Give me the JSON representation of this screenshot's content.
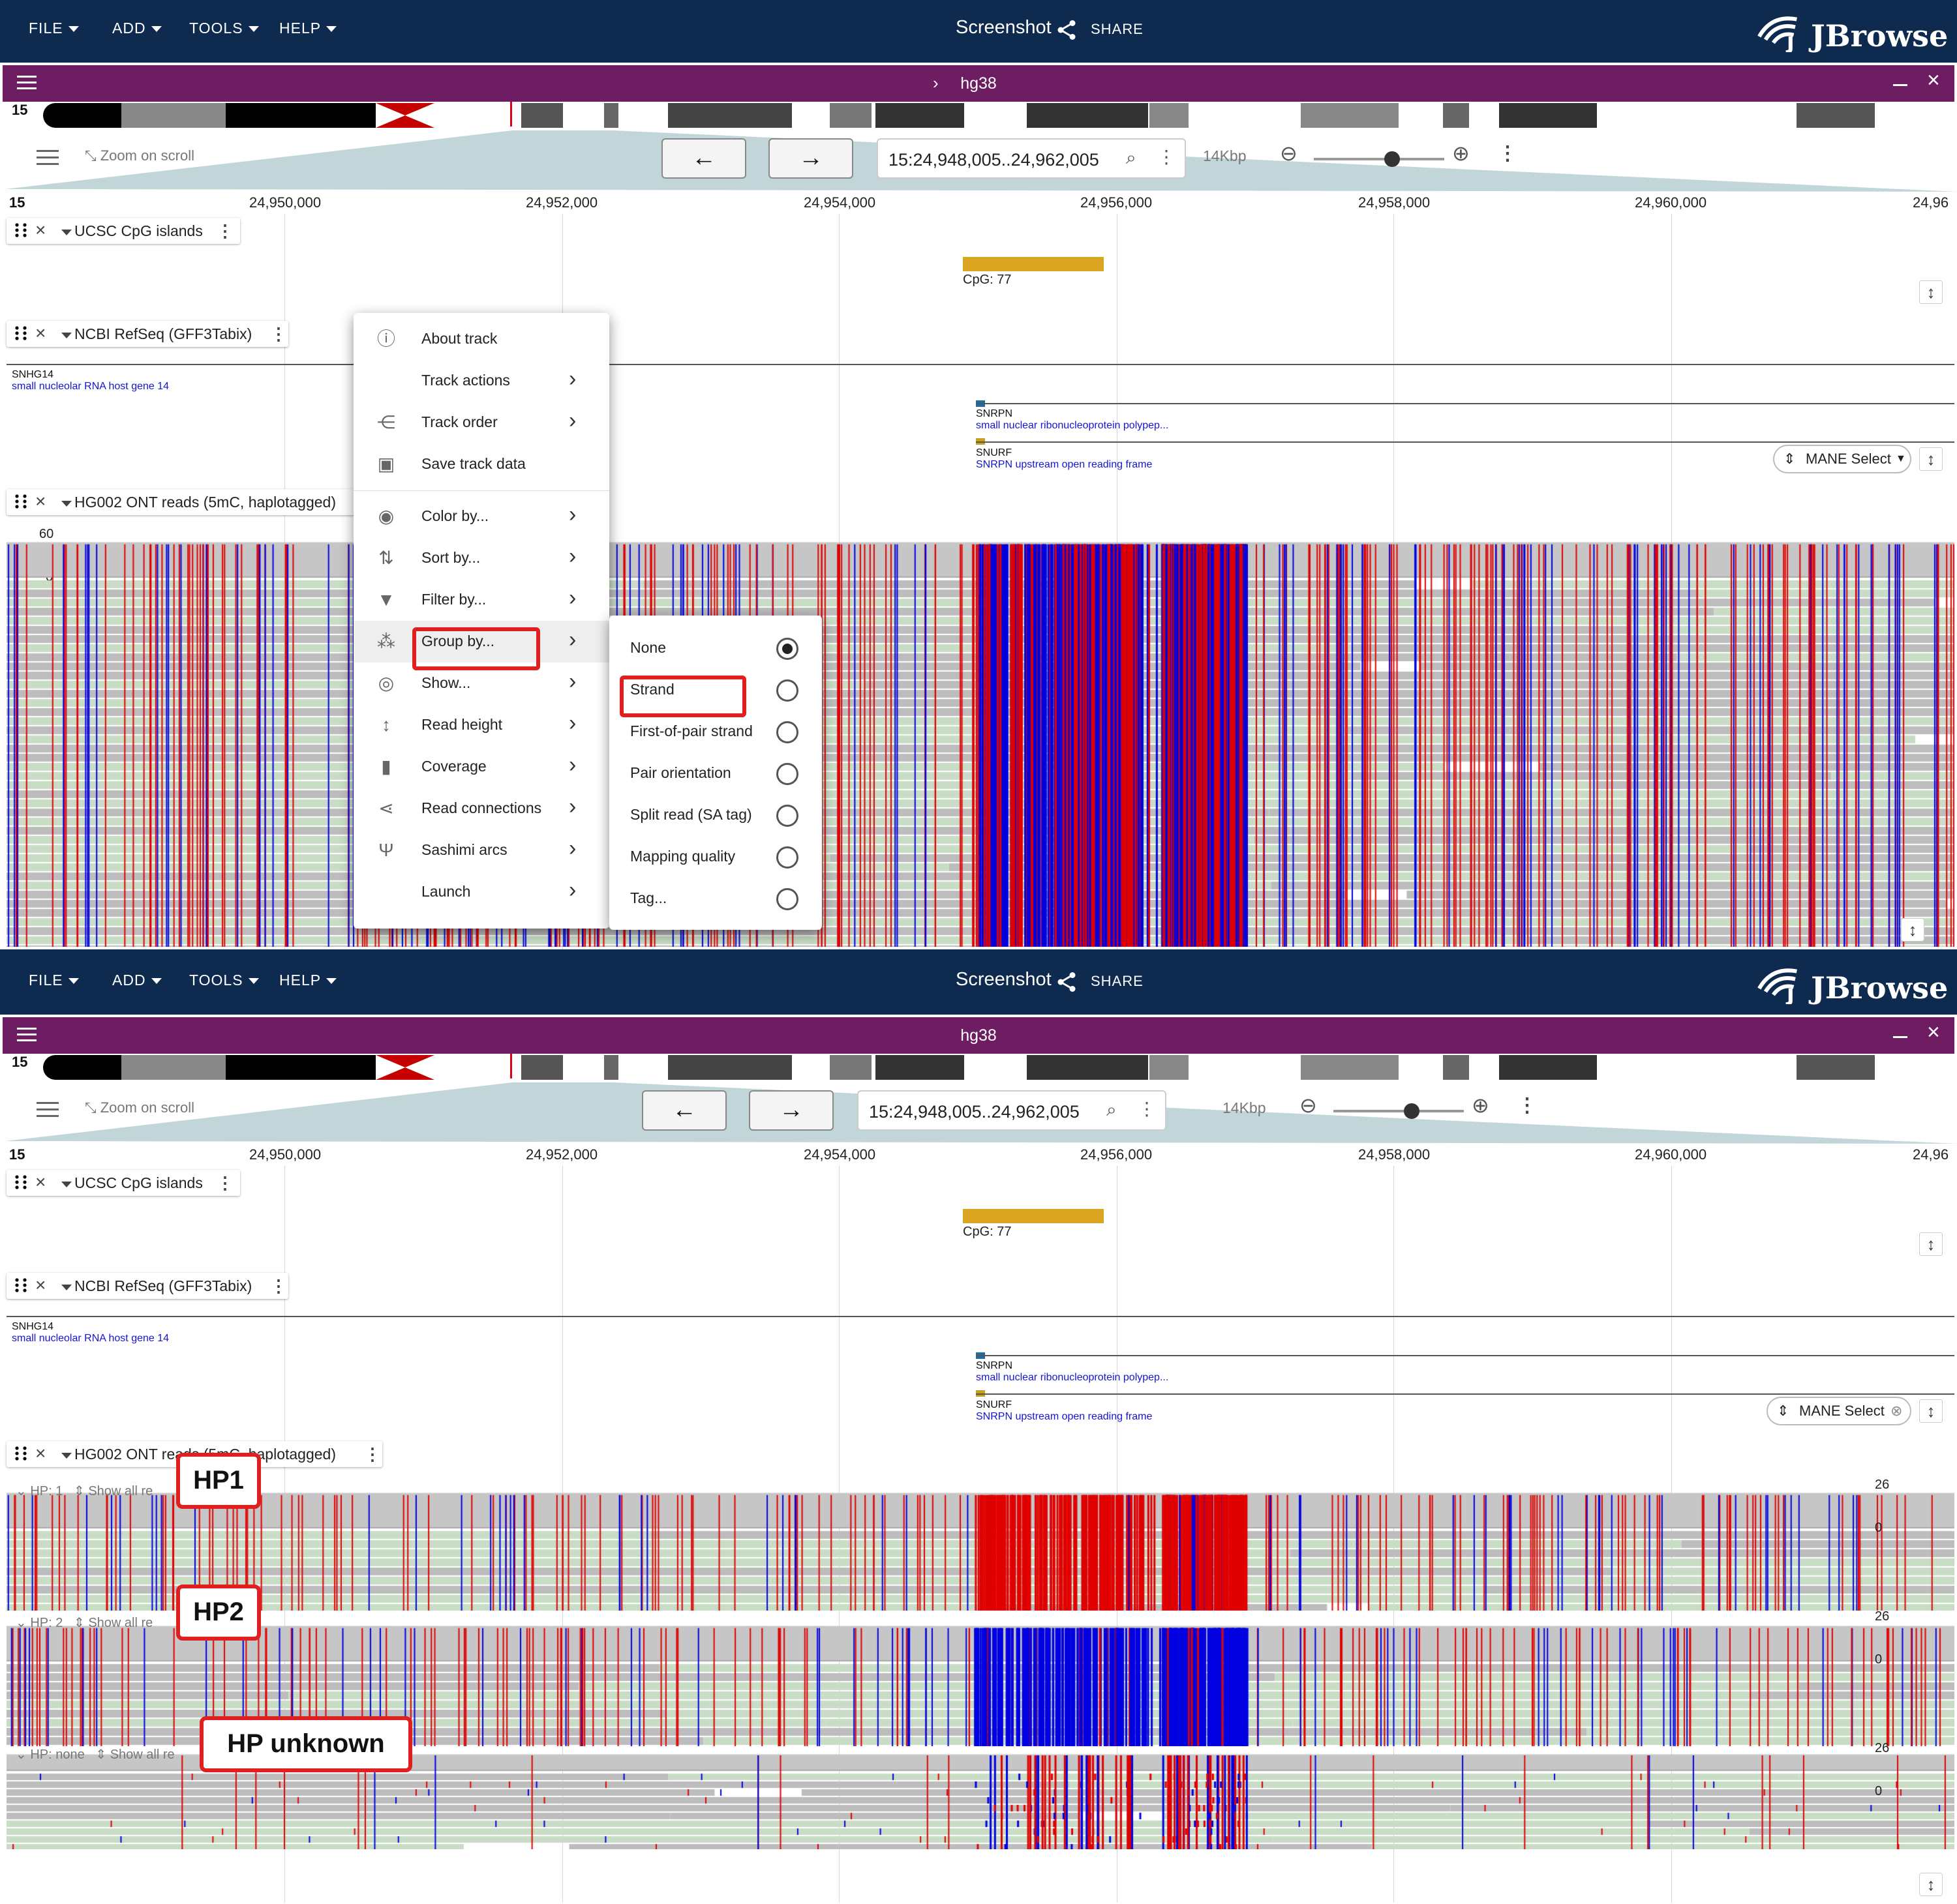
{
  "menubar": {
    "file": "FILE",
    "add": "ADD",
    "tools": "TOOLS",
    "help": "HELP"
  },
  "screenshot_title": "Screenshot",
  "share_label": "SHARE",
  "brand": "JBrowse",
  "view": {
    "assembly": "hg38",
    "chromosome": "15",
    "zoom_on_scroll": "Zoom on scroll",
    "locstring": "15:24,948,005..24,962,005",
    "bp_per_view": "14Kbp",
    "zoom_level": 0.6
  },
  "ruler": {
    "chrom": "15",
    "ticks": [
      "24,950,000",
      "24,952,000",
      "24,954,000",
      "24,956,000",
      "24,958,000",
      "24,960,000",
      "24,96"
    ]
  },
  "tracks": {
    "cpg": {
      "name": "UCSC CpG islands",
      "feature_label": "CpG: 77"
    },
    "refseq": {
      "name": "NCBI RefSeq (GFF3Tabix)",
      "genes": [
        {
          "name": "SNHG14",
          "desc": "small nucleolar RNA host gene 14"
        },
        {
          "name": "SNRPN",
          "desc": "small nuclear ribonucleoprotein polypep..."
        },
        {
          "name": "SNURF",
          "desc": "SNRPN upstream open reading frame"
        }
      ],
      "filter_chip": "MANE Select"
    },
    "reads": {
      "name": "HG002 ONT reads (5mC, haplotagged)",
      "coverage_max_top": "60",
      "coverage_min_top": "0"
    }
  },
  "context_menu": {
    "items": [
      "About track",
      "Track actions",
      "Track order",
      "Save track data",
      "Color by...",
      "Sort by...",
      "Filter by...",
      "Group by...",
      "Show...",
      "Read height",
      "Coverage",
      "Read connections",
      "Sashimi arcs",
      "Launch"
    ],
    "submenu_items": [
      "None",
      "Strand",
      "First-of-pair strand",
      "Pair orientation",
      "Split read (SA tag)",
      "Mapping quality",
      "Tag..."
    ],
    "submenu_selected": "None"
  },
  "groups": {
    "hp1": {
      "label": "HP: 1",
      "show_all": "Show all re",
      "cov_max": "26",
      "cov_min": "0",
      "callout": "HP1"
    },
    "hp2": {
      "label": "HP: 2",
      "show_all": "Show all re",
      "cov_max": "26",
      "cov_min": "0",
      "callout": "HP2"
    },
    "none": {
      "label": "HP: none",
      "show_all": "Show all re",
      "cov_max": "26",
      "cov_min": "0",
      "callout": "HP unknown"
    }
  },
  "colors": {
    "appbar": "#0e2a4f",
    "view_header": "#6e1d63",
    "methylated": "#e00000",
    "unmethylated": "#0000e0",
    "read_forward": "#bdbdbd",
    "read_reverse": "#c8dcc6",
    "cpg_feature": "#daa520",
    "highlight": "#e02020"
  }
}
